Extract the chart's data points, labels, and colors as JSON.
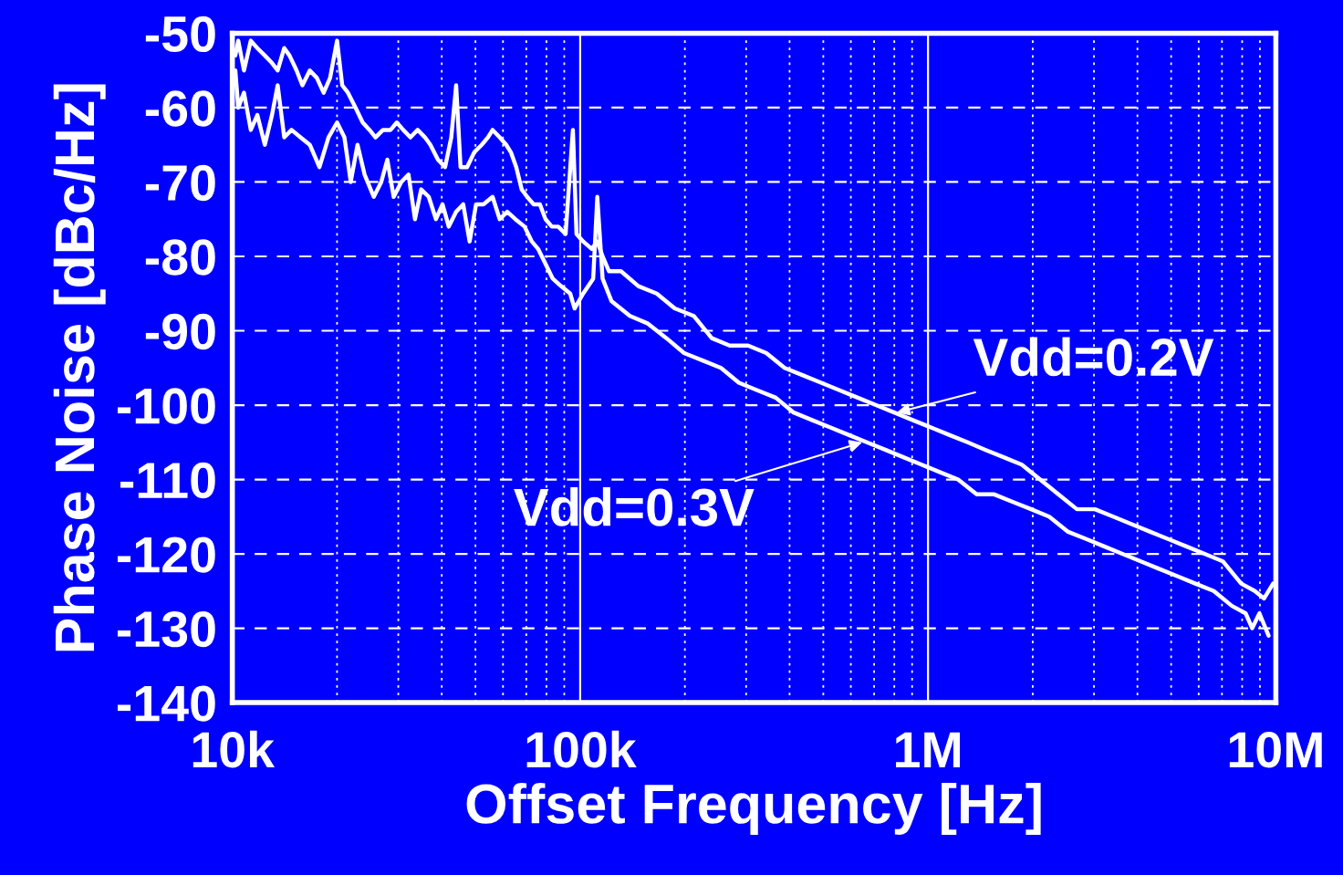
{
  "chart_data": {
    "type": "line",
    "xlabel": "Offset Frequency [Hz]",
    "ylabel": "Phase Noise [dBc/Hz]",
    "log": "x",
    "grid": true,
    "marker": "none",
    "line_style": "solid",
    "xlim": [
      10000,
      10000000
    ],
    "xticks": [
      {
        "value": 10000,
        "label": "10k"
      },
      {
        "value": 100000,
        "label": "100k"
      },
      {
        "value": 1000000,
        "label": "1M"
      },
      {
        "value": 10000000,
        "label": "10M"
      }
    ],
    "ylim": [
      -140,
      -50
    ],
    "yticks": [
      -50,
      -60,
      -70,
      -80,
      -90,
      -100,
      -110,
      -120,
      -130,
      -140
    ],
    "annotations": [
      {
        "text": "Vdd=0.2V",
        "x": 814000,
        "y": -101
      },
      {
        "text": "Vdd=0.3V",
        "x": 647000,
        "y": -105
      }
    ],
    "series": [
      {
        "color": "#ffffff",
        "x": [
          10200,
          10400,
          10800,
          11300,
          11800,
          12400,
          13000,
          13500,
          14100,
          14600,
          15300,
          15900,
          16700,
          17500,
          18300,
          19100,
          20000,
          20700,
          21500,
          22600,
          23700,
          24800,
          25800,
          27100,
          28500,
          29700,
          31000,
          32500,
          34100,
          35800,
          37100,
          39000,
          40900,
          42600,
          44000,
          45300,
          47300,
          49600,
          52100,
          54300,
          56000,
          58700,
          61300,
          63200,
          65500,
          67900,
          70400,
          73500,
          76600,
          79500,
          82900,
          86500,
          90800,
          95300,
          97600,
          102000,
          108000,
          112000,
          116000,
          121000,
          131000,
          147000,
          166000,
          187000,
          212000,
          239000,
          269000,
          304000,
          343000,
          387000,
          437000,
          493000,
          557000,
          628000,
          709000,
          800000,
          903000,
          1020000,
          1150000,
          1300000,
          1460000,
          1650000,
          1860000,
          2100000,
          2370000,
          2680000,
          3020000,
          3410000,
          3850000,
          4340000,
          4900000,
          5530000,
          6240000,
          7040000,
          7950000,
          8700000,
          9250000,
          9820000
        ],
        "values": [
          -53,
          -51,
          -55,
          -51,
          -52,
          -53,
          -54,
          -55,
          -52,
          -53,
          -55,
          -57,
          -55,
          -56,
          -58,
          -56,
          -51,
          -57,
          -58,
          -60,
          -62,
          -63,
          -64,
          -63,
          -63,
          -62,
          -63,
          -64,
          -63,
          -64,
          -65,
          -67,
          -68,
          -64,
          -57,
          -68,
          -68,
          -66,
          -65,
          -64,
          -63,
          -64,
          -65,
          -66,
          -68,
          -71,
          -72,
          -73,
          -73,
          -75,
          -76,
          -76,
          -77,
          -63,
          -77,
          -78,
          -79,
          -78,
          -80,
          -82,
          -82,
          -84,
          -85,
          -87,
          -88,
          -91,
          -92,
          -92,
          -93,
          -95,
          -96,
          -97,
          -98,
          -99,
          -100,
          -101,
          -102,
          -103,
          -104,
          -105,
          -106,
          -107,
          -108,
          -110,
          -112,
          -114,
          -114,
          -115,
          -116,
          -117,
          -118,
          -119,
          -120,
          -121,
          -124,
          -125,
          -126,
          -124
        ]
      },
      {
        "color": "#ffffff",
        "x": [
          10200,
          10400,
          10800,
          11300,
          11800,
          12400,
          13000,
          13500,
          14100,
          14800,
          15700,
          16700,
          17800,
          18900,
          20000,
          21000,
          21900,
          22900,
          24000,
          25500,
          26800,
          27900,
          29100,
          30600,
          32100,
          33500,
          34900,
          36700,
          38500,
          40200,
          41900,
          44000,
          46100,
          48100,
          50200,
          52700,
          56000,
          58700,
          61700,
          65100,
          69200,
          72600,
          75700,
          79500,
          83400,
          88100,
          93600,
          96400,
          102000,
          109000,
          112000,
          116000,
          123000,
          139000,
          156000,
          177000,
          199000,
          225000,
          254000,
          286000,
          323000,
          365000,
          411000,
          464000,
          524000,
          591000,
          667000,
          753000,
          850000,
          958000,
          1080000,
          1220000,
          1380000,
          1550000,
          1750000,
          1980000,
          2230000,
          2520000,
          2850000,
          3210000,
          3620000,
          4090000,
          4610000,
          5210000,
          5870000,
          6630000,
          7480000,
          8190000,
          8550000,
          8970000,
          9530000
        ],
        "values": [
          -55,
          -60,
          -58,
          -63,
          -61,
          -65,
          -61,
          -57,
          -64,
          -63,
          -64,
          -65,
          -68,
          -64,
          -62,
          -64,
          -70,
          -65,
          -69,
          -72,
          -70,
          -67,
          -72,
          -70,
          -69,
          -75,
          -71,
          -72,
          -75,
          -73,
          -76,
          -74,
          -73,
          -78,
          -73,
          -73,
          -72,
          -75,
          -74,
          -75,
          -76,
          -78,
          -79,
          -81,
          -83,
          -84,
          -85,
          -87,
          -85,
          -83,
          -72,
          -83,
          -86,
          -88,
          -89,
          -91,
          -93,
          -94,
          -95,
          -97,
          -98,
          -99,
          -101,
          -102,
          -103,
          -104,
          -105,
          -106,
          -107,
          -108,
          -109,
          -110,
          -112,
          -112,
          -113,
          -114,
          -115,
          -117,
          -118,
          -119,
          -120,
          -121,
          -122,
          -123,
          -124,
          -125,
          -127,
          -128,
          -130,
          -128,
          -131
        ]
      }
    ]
  }
}
